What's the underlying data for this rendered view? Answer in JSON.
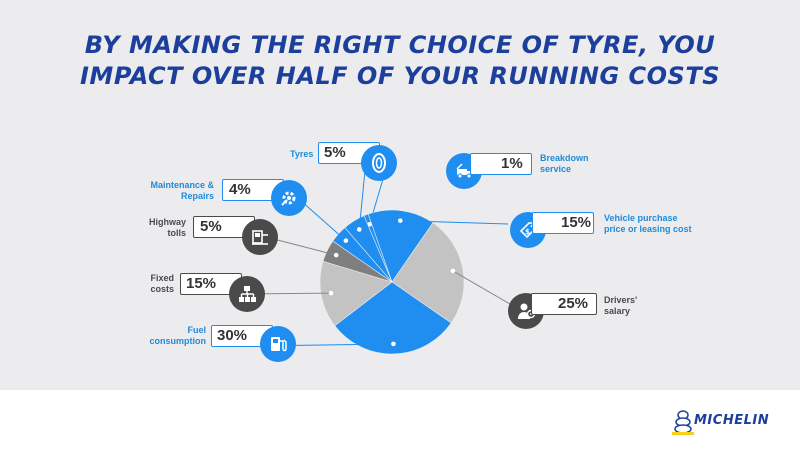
{
  "header": {
    "title_line1": "BY MAKING THE RIGHT CHOICE OF TYRE, YOU",
    "title_line2": "IMPACT OVER HALF OF YOUR RUNNING COSTS"
  },
  "brand": {
    "name": "MICHELIN",
    "color": "#1c3f9c",
    "accent": "#f7d117"
  },
  "colors": {
    "blue": "#1f8ef0",
    "light_gray": "#c3c3c3",
    "dark_gray": "#7f7f7f",
    "label_blue": "#1f8bd9",
    "title": "#1c3f9c"
  },
  "chart_data": {
    "type": "pie",
    "title": "BY MAKING THE RIGHT CHOICE OF TYRE, YOU IMPACT OVER HALF OF YOUR RUNNING COSTS",
    "unit": "%",
    "slices": [
      {
        "label": "Breakdown service",
        "value": 1,
        "display": "1%",
        "color": "#1f8ef0",
        "icon": "tow-truck-icon",
        "icon_style": "blue"
      },
      {
        "label": "Vehicle purchase price or leasing cost",
        "value": 15,
        "display": "15%",
        "color": "#1f8ef0",
        "icon": "price-tag-icon",
        "icon_style": "blue"
      },
      {
        "label": "Drivers' salary",
        "value": 25,
        "display": "25%",
        "color": "#c3c3c3",
        "icon": "driver-icon",
        "icon_style": "dark"
      },
      {
        "label": "Fuel consumption",
        "value": 30,
        "display": "30%",
        "color": "#1f8ef0",
        "icon": "fuel-pump-icon",
        "icon_style": "blue"
      },
      {
        "label": "Fixed costs",
        "value": 15,
        "display": "15%",
        "color": "#c3c3c3",
        "icon": "hierarchy-icon",
        "icon_style": "dark"
      },
      {
        "label": "Highway tolls",
        "value": 5,
        "display": "5%",
        "color": "#7f7f7f",
        "icon": "toll-booth-icon",
        "icon_style": "dark"
      },
      {
        "label": "Maintenance & Repairs",
        "value": 4,
        "display": "4%",
        "color": "#1f8ef0",
        "icon": "gear-wrench-icon",
        "icon_style": "blue"
      },
      {
        "label": "Tyres",
        "value": 5,
        "display": "5%",
        "color": "#1f8ef0",
        "icon": "tyre-icon",
        "icon_style": "blue"
      }
    ]
  },
  "callouts": {
    "breakdown": {
      "pct": "1%",
      "label": "Breakdown\nservice"
    },
    "vehicle": {
      "pct": "15%",
      "label": "Vehicle purchase\nprice or leasing cost"
    },
    "drivers": {
      "pct": "25%",
      "label": "Drivers'\nsalary"
    },
    "fuel": {
      "pct": "30%",
      "label": "Fuel\nconsumption"
    },
    "fixed": {
      "pct": "15%",
      "label": "Fixed\ncosts"
    },
    "tolls": {
      "pct": "5%",
      "label": "Highway\ntolls"
    },
    "maintenance": {
      "pct": "4%",
      "label": "Maintenance &\nRepairs"
    },
    "tyres": {
      "pct": "5%",
      "label": "Tyres"
    }
  }
}
